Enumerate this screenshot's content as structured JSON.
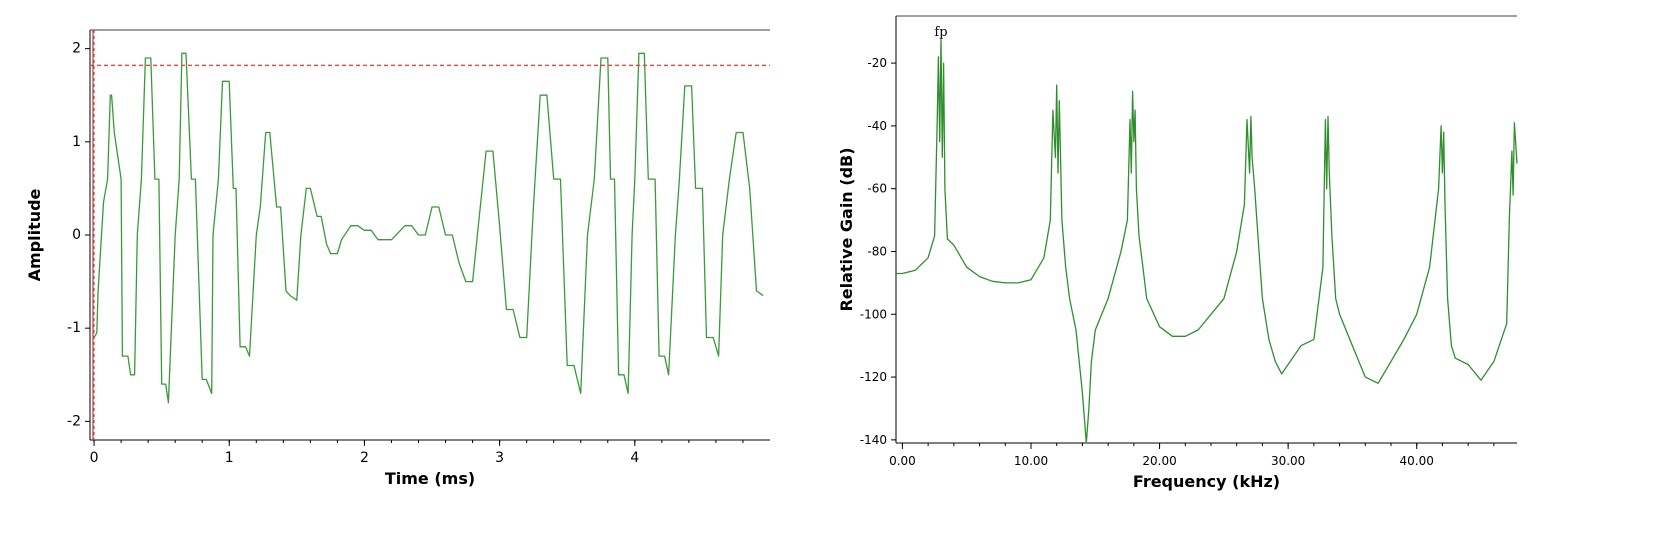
{
  "chart_data": [
    {
      "type": "line",
      "title": "",
      "xlabel": "Time (ms)",
      "ylabel": "Amplitude",
      "xlim": [
        -0.03,
        5.0
      ],
      "ylim": [
        -2.2,
        2.2
      ],
      "xticks": [
        0,
        1,
        2,
        3,
        4
      ],
      "xtick_labels": [
        "0",
        "1",
        "2",
        "3",
        "4"
      ],
      "yticks": [
        2,
        1,
        0,
        -1,
        -2
      ],
      "ytick_labels": [
        "2",
        "1",
        "0",
        "-1",
        "-2"
      ],
      "grid": false,
      "reference_lines": {
        "threshold_y": 1.82,
        "cursor_x": 0.0
      },
      "colors": {
        "series": "#3a9a3a",
        "reference": "#e05050",
        "frame": "#808080"
      },
      "series": [
        {
          "x": [
            0,
            0.02,
            0.03,
            0.07,
            0.1,
            0.12,
            0.13,
            0.15,
            0.2,
            0.21,
            0.25,
            0.27,
            0.3,
            0.32,
            0.35,
            0.38,
            0.42,
            0.45,
            0.48,
            0.5,
            0.53,
            0.55,
            0.6,
            0.63,
            0.65,
            0.68,
            0.72,
            0.75,
            0.8,
            0.83,
            0.87,
            0.88,
            0.92,
            0.95,
            1.0,
            1.03,
            1.05,
            1.08,
            1.12,
            1.15,
            1.2,
            1.23,
            1.27,
            1.3,
            1.35,
            1.38,
            1.42,
            1.45,
            1.5,
            1.53,
            1.57,
            1.6,
            1.65,
            1.68,
            1.72,
            1.75,
            1.8,
            1.83,
            1.9,
            1.95,
            2.0,
            2.05,
            2.1,
            2.2,
            2.3,
            2.35,
            2.4,
            2.45,
            2.5,
            2.55,
            2.6,
            2.65,
            2.7,
            2.75,
            2.8,
            2.85,
            2.9,
            2.95,
            3.0,
            3.05,
            3.1,
            3.15,
            3.2,
            3.25,
            3.3,
            3.35,
            3.4,
            3.45,
            3.5,
            3.55,
            3.6,
            3.65,
            3.7,
            3.75,
            3.8,
            3.82,
            3.85,
            3.88,
            3.92,
            3.95,
            3.98,
            4.0,
            4.03,
            4.07,
            4.1,
            4.15,
            4.18,
            4.22,
            4.25,
            4.3,
            4.33,
            4.37,
            4.42,
            4.45,
            4.5,
            4.53,
            4.58,
            4.62,
            4.65,
            4.7,
            4.75,
            4.8,
            4.85,
            4.9,
            4.95
          ],
          "y": [
            -1.1,
            -1.05,
            -0.6,
            0.35,
            0.6,
            1.5,
            1.5,
            1.1,
            0.6,
            -1.3,
            -1.3,
            -1.5,
            -1.5,
            0.0,
            0.6,
            1.9,
            1.9,
            0.6,
            0.6,
            -1.6,
            -1.6,
            -1.8,
            0.0,
            0.6,
            1.95,
            1.95,
            0.6,
            0.6,
            -1.55,
            -1.55,
            -1.7,
            0.0,
            0.6,
            1.65,
            1.65,
            0.5,
            0.5,
            -1.2,
            -1.2,
            -1.3,
            0.0,
            0.3,
            1.1,
            1.1,
            0.3,
            0.3,
            -0.6,
            -0.65,
            -0.7,
            0.0,
            0.5,
            0.5,
            0.2,
            0.2,
            -0.1,
            -0.2,
            -0.2,
            -0.05,
            0.1,
            0.1,
            0.05,
            0.05,
            -0.05,
            -0.05,
            0.1,
            0.1,
            0.0,
            0.0,
            0.3,
            0.3,
            0.0,
            0.0,
            -0.3,
            -0.5,
            -0.5,
            0.2,
            0.9,
            0.9,
            0.1,
            -0.8,
            -0.8,
            -1.1,
            -1.1,
            0.3,
            1.5,
            1.5,
            0.6,
            0.6,
            -1.4,
            -1.4,
            -1.7,
            0.0,
            0.6,
            1.9,
            1.9,
            0.6,
            0.6,
            -1.5,
            -1.5,
            -1.7,
            0.0,
            0.6,
            1.95,
            1.95,
            0.6,
            0.6,
            -1.3,
            -1.3,
            -1.5,
            0.0,
            0.6,
            1.6,
            1.6,
            0.5,
            0.5,
            -1.1,
            -1.1,
            -1.3,
            0.0,
            0.6,
            1.1,
            1.1,
            0.5,
            -0.6,
            -0.65
          ]
        }
      ]
    },
    {
      "type": "line",
      "title": "",
      "xlabel": "Frequency (kHz)",
      "ylabel": "Relative Gain (dB)",
      "xlim": [
        -0.5,
        47.8
      ],
      "ylim": [
        -141,
        -5
      ],
      "xticks": [
        0,
        10,
        20,
        30,
        40
      ],
      "xtick_labels": [
        "0.00",
        "10.00",
        "20.00",
        "30.00",
        "40.00"
      ],
      "yticks": [
        -20,
        -40,
        -60,
        -80,
        -100,
        -120,
        -140
      ],
      "ytick_labels": [
        "-20",
        "-40",
        "-60",
        "-80",
        "-100",
        "-120",
        "-140"
      ],
      "grid": false,
      "annotations": [
        {
          "text": "fp",
          "x": 3.0,
          "y": -12
        }
      ],
      "colors": {
        "series": "#2f8f2f",
        "frame": "#808080"
      },
      "series": [
        {
          "x": [
            -0.5,
            0,
            1,
            2,
            2.5,
            2.7,
            2.8,
            2.9,
            3.0,
            3.1,
            3.2,
            3.3,
            3.5,
            4,
            5,
            6,
            7,
            8,
            9,
            10,
            11,
            11.5,
            11.7,
            11.9,
            12.0,
            12.1,
            12.2,
            12.4,
            12.7,
            13,
            13.5,
            14,
            14.3,
            14.5,
            14.7,
            15,
            16,
            17,
            17.5,
            17.7,
            17.8,
            17.9,
            18.0,
            18.1,
            18.2,
            18.4,
            18.7,
            19,
            20,
            21,
            22,
            23,
            24,
            25,
            26,
            26.6,
            26.8,
            27.0,
            27.1,
            27.2,
            27.4,
            27.7,
            28,
            28.5,
            29,
            29.5,
            30,
            31,
            32,
            32.7,
            32.9,
            33.0,
            33.1,
            33.2,
            33.4,
            33.7,
            34,
            35,
            36,
            37,
            38,
            39,
            40,
            41,
            41.7,
            41.9,
            42.0,
            42.1,
            42.2,
            42.4,
            42.7,
            43,
            44,
            45,
            46,
            47,
            47.2,
            47.4,
            47.5,
            47.6,
            47.8
          ],
          "y": [
            -87,
            -87,
            -86,
            -82,
            -75,
            -40,
            -18,
            -45,
            -12,
            -50,
            -20,
            -60,
            -76,
            -78,
            -85,
            -88,
            -89.5,
            -90,
            -90,
            -89,
            -82,
            -70,
            -35,
            -50,
            -27,
            -55,
            -32,
            -70,
            -85,
            -95,
            -105,
            -125,
            -141,
            -130,
            -115,
            -105,
            -95,
            -80,
            -70,
            -38,
            -55,
            -29,
            -45,
            -35,
            -60,
            -75,
            -85,
            -95,
            -104,
            -107,
            -107,
            -105,
            -100,
            -95,
            -80,
            -65,
            -38,
            -55,
            -37,
            -50,
            -60,
            -78,
            -95,
            -108,
            -115,
            -119,
            -116,
            -110,
            -108,
            -85,
            -38,
            -60,
            -37,
            -55,
            -75,
            -95,
            -100,
            -110,
            -120,
            -122,
            -115,
            -108,
            -100,
            -85,
            -60,
            -40,
            -55,
            -42,
            -65,
            -95,
            -110,
            -114,
            -116,
            -121,
            -115,
            -103,
            -70,
            -48,
            -62,
            -39,
            -52
          ]
        }
      ]
    }
  ]
}
